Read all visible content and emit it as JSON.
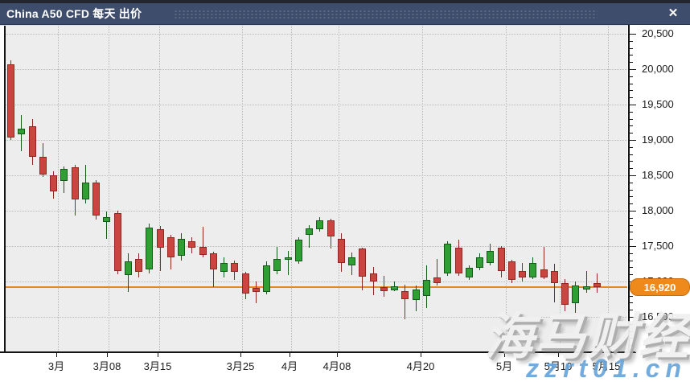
{
  "window": {
    "title": "China A50 CFD 每天 出价",
    "close_glyph": "✕"
  },
  "bid": {
    "value": 16920,
    "label": "16,920"
  },
  "watermark": {
    "brand": "海马财经",
    "url": "zzrt01.cn"
  },
  "price_axis": {
    "labels": [
      "20,500",
      "20,000",
      "19,500",
      "19,000",
      "18,500",
      "18,000",
      "17,500",
      "17,000",
      "16,500"
    ],
    "max": 20500,
    "major_step": 500,
    "minor_step": 100
  },
  "chart_data": {
    "type": "candlestick",
    "title": "China A50 CFD 每天 出价",
    "period": "每天",
    "price_type": "出价",
    "ylim": [
      16000,
      20600
    ],
    "grid": "dotted",
    "colors": {
      "up_fill": "#2f9e33",
      "up_border": "#14591a",
      "down_fill": "#cb4540",
      "down_border": "#8f2723",
      "bid_line": "#e8871e",
      "bid_badge": "#ee8a1c",
      "watermark_url": "#66a3da"
    },
    "x_ticks": [
      {
        "text": "3月",
        "pos": 65
      },
      {
        "text": "3月08",
        "pos": 128
      },
      {
        "text": "3月15",
        "pos": 191
      },
      {
        "text": "3月25",
        "pos": 294
      },
      {
        "text": "4月",
        "pos": 355
      },
      {
        "text": "4月08",
        "pos": 414
      },
      {
        "text": "4月20",
        "pos": 518
      },
      {
        "text": "5月",
        "pos": 622
      },
      {
        "text": "5月10",
        "pos": 689
      },
      {
        "text": "5月15",
        "pos": 749
      }
    ],
    "candle_format": "[open, high, low, close]",
    "candles": [
      [
        20070,
        20130,
        19000,
        19030
      ],
      [
        19080,
        19350,
        18840,
        19160
      ],
      [
        19190,
        19300,
        18650,
        18760
      ],
      [
        18760,
        18955,
        18480,
        18510
      ],
      [
        18500,
        18555,
        18170,
        18270
      ],
      [
        18420,
        18620,
        18250,
        18590
      ],
      [
        18610,
        18650,
        17935,
        18160
      ],
      [
        18160,
        18650,
        18100,
        18400
      ],
      [
        18400,
        18430,
        17875,
        17930
      ],
      [
        17840,
        17990,
        17600,
        17910
      ],
      [
        17970,
        17995,
        17100,
        17150
      ],
      [
        17090,
        17400,
        16850,
        17285
      ],
      [
        17320,
        17400,
        17055,
        17135
      ],
      [
        17170,
        17820,
        17110,
        17760
      ],
      [
        17740,
        17780,
        17150,
        17480
      ],
      [
        17625,
        17660,
        17170,
        17340
      ],
      [
        17365,
        17680,
        17300,
        17600
      ],
      [
        17570,
        17625,
        17400,
        17475
      ],
      [
        17490,
        17770,
        17340,
        17375
      ],
      [
        17400,
        17420,
        16920,
        17170
      ],
      [
        17135,
        17340,
        17055,
        17260
      ],
      [
        17260,
        17300,
        17020,
        17135
      ],
      [
        17115,
        17140,
        16750,
        16830
      ],
      [
        16910,
        17000,
        16690,
        16850
      ],
      [
        16850,
        17280,
        16820,
        17230
      ],
      [
        17150,
        17490,
        17100,
        17320
      ],
      [
        17310,
        17430,
        17090,
        17340
      ],
      [
        17285,
        17625,
        17250,
        17590
      ],
      [
        17660,
        17795,
        17480,
        17750
      ],
      [
        17740,
        17910,
        17700,
        17865
      ],
      [
        17865,
        17890,
        17470,
        17635
      ],
      [
        17600,
        17680,
        17140,
        17260
      ],
      [
        17230,
        17410,
        17090,
        17340
      ],
      [
        17465,
        17480,
        16870,
        17070
      ],
      [
        17115,
        17205,
        16810,
        17000
      ],
      [
        16920,
        17080,
        16780,
        16860
      ],
      [
        16880,
        17000,
        16860,
        16930
      ],
      [
        16865,
        16950,
        16470,
        16750
      ],
      [
        16740,
        16945,
        16580,
        16885
      ],
      [
        16795,
        17230,
        16625,
        17025
      ],
      [
        17055,
        17320,
        16940,
        16980
      ],
      [
        17115,
        17570,
        17080,
        17535
      ],
      [
        17477,
        17590,
        17080,
        17115
      ],
      [
        17057,
        17230,
        17020,
        17193
      ],
      [
        17195,
        17400,
        17160,
        17340
      ],
      [
        17260,
        17535,
        17230,
        17430
      ],
      [
        17477,
        17500,
        17057,
        17148
      ],
      [
        17285,
        17310,
        16975,
        17025
      ],
      [
        17148,
        17260,
        17000,
        17057
      ],
      [
        17057,
        17340,
        17030,
        17260
      ],
      [
        17170,
        17490,
        17030,
        17057
      ],
      [
        17148,
        17250,
        16700,
        16980
      ],
      [
        16977,
        17035,
        16580,
        16670
      ],
      [
        16693,
        17000,
        16557,
        16943
      ],
      [
        16886,
        17148,
        16840,
        16930
      ],
      [
        16977,
        17114,
        16840,
        16920
      ]
    ]
  }
}
